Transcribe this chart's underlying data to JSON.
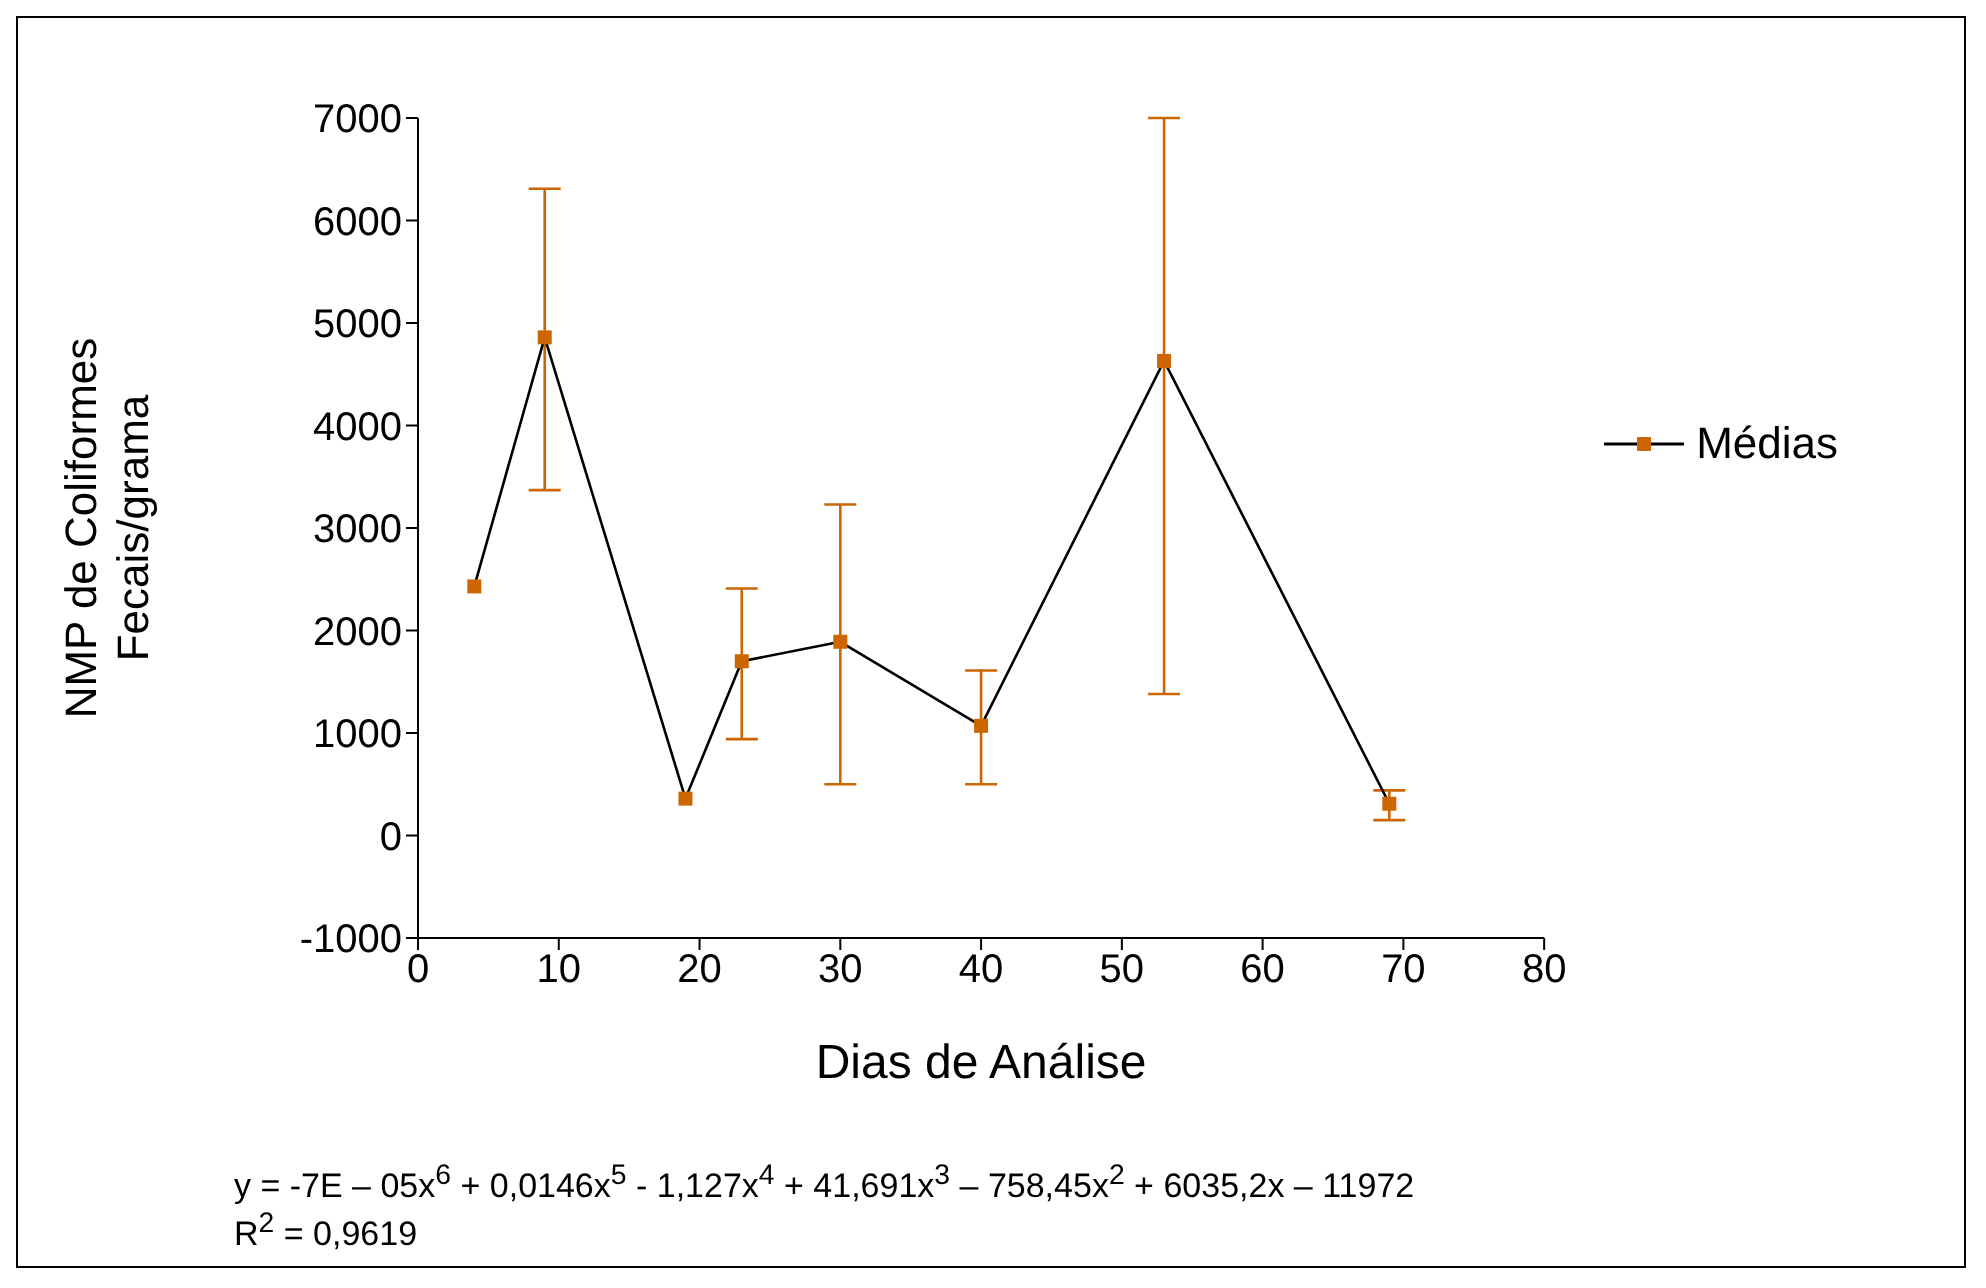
{
  "chart_data": {
    "type": "line",
    "xlabel": "Dias de Análise",
    "ylabel": "NMP de Coliformes Fecais/grama",
    "x": [
      4,
      9,
      19,
      23,
      30,
      40,
      53,
      69
    ],
    "series": [
      {
        "name": "Médias",
        "color": "#000000",
        "values": [
          2430,
          4860,
          360,
          1700,
          1890,
          1070,
          4630,
          310
        ],
        "errors": [
          null,
          [
            3370,
            6310
          ],
          null,
          [
            940,
            2410
          ],
          [
            500,
            3230
          ],
          [
            500,
            1610
          ],
          [
            1380,
            7000
          ],
          [
            150,
            440
          ]
        ]
      }
    ],
    "xlim": [
      0,
      80
    ],
    "xticks": [
      0,
      10,
      20,
      30,
      40,
      50,
      60,
      70,
      80
    ],
    "ylim": [
      -1000,
      7000
    ],
    "yticks": [
      -1000,
      0,
      1000,
      2000,
      3000,
      4000,
      5000,
      6000,
      7000
    ],
    "marker": "square",
    "legend": "right",
    "grid": false,
    "annotations": [
      "y = -7E – 05x$^{6}$ + 0,0146x$^{5}$ - 1,127x$^{4}$ + 41,691x$^{3}$ – 758,45x$^{2}$ + 6035,2x – 11972",
      "R$^{2}$ = 0,9619"
    ]
  }
}
